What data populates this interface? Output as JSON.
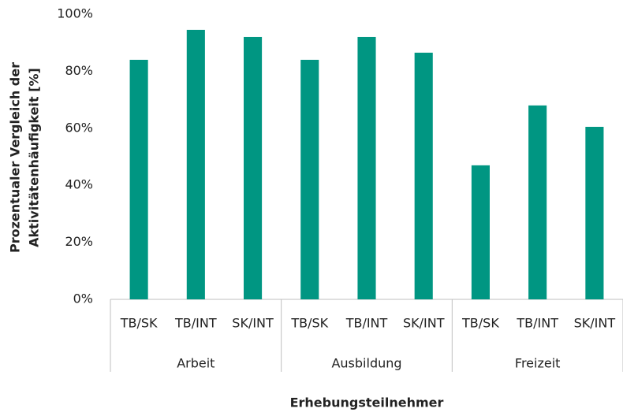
{
  "chart_data": {
    "type": "bar",
    "xlabel": "Erhebungsteilnehmer",
    "ylabel": [
      "Prozentualer Vergleich der",
      "Aktivitätenhäufigkeit [%]"
    ],
    "categories": [
      "TB/SK",
      "TB/INT",
      "SK/INT",
      "TB/SK",
      "TB/INT",
      "SK/INT",
      "TB/SK",
      "TB/INT",
      "SK/INT"
    ],
    "groups": [
      "Arbeit",
      "Ausbildung",
      "Freizeit"
    ],
    "values": [
      84,
      94.5,
      92,
      84,
      92,
      86.5,
      47,
      68,
      60.5
    ],
    "color": "#009682",
    "ylim": [
      0,
      100
    ],
    "yticks": [
      {
        "value": 0,
        "label": "0%"
      },
      {
        "value": 20,
        "label": "20%"
      },
      {
        "value": 40,
        "label": "40%"
      },
      {
        "value": 60,
        "label": "60%"
      },
      {
        "value": 80,
        "label": "80%"
      },
      {
        "value": 100,
        "label": "100%"
      }
    ],
    "grid": false
  }
}
